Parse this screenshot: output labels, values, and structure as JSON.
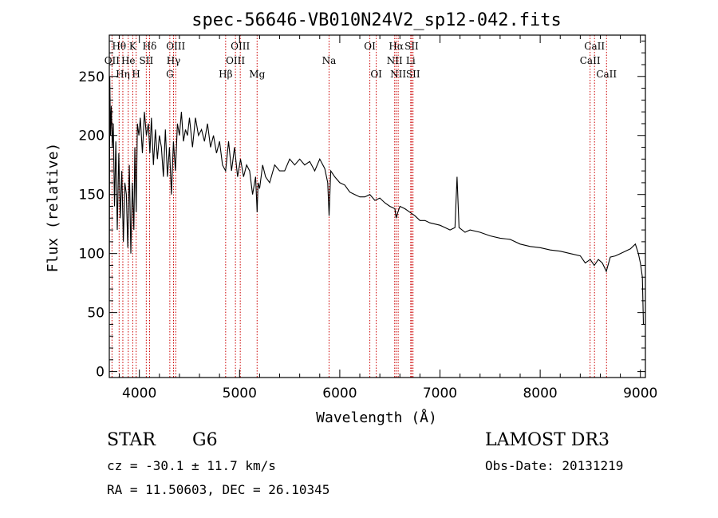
{
  "chart_data": {
    "type": "line",
    "title": "spec-56646-VB010N24V2_sp12-042.fits",
    "xlabel": "Wavelength (Å)",
    "ylabel": "Flux (relative)",
    "xlim": [
      3700,
      9050
    ],
    "ylim": [
      -5,
      285
    ],
    "xticks": [
      4000,
      5000,
      6000,
      7000,
      8000,
      9000
    ],
    "yticks": [
      0,
      50,
      100,
      150,
      200,
      250
    ],
    "series": [
      {
        "name": "flux",
        "x": [
          3700,
          3705,
          3712,
          3720,
          3730,
          3740,
          3752,
          3765,
          3780,
          3795,
          3810,
          3825,
          3840,
          3855,
          3870,
          3885,
          3900,
          3915,
          3930,
          3945,
          3955,
          3968,
          3980,
          3995,
          4010,
          4030,
          4050,
          4070,
          4090,
          4105,
          4120,
          4140,
          4160,
          4180,
          4200,
          4220,
          4240,
          4260,
          4280,
          4300,
          4320,
          4340,
          4360,
          4380,
          4400,
          4420,
          4440,
          4460,
          4480,
          4500,
          4530,
          4560,
          4590,
          4620,
          4650,
          4680,
          4710,
          4740,
          4770,
          4800,
          4830,
          4861,
          4890,
          4920,
          4950,
          4980,
          5010,
          5040,
          5070,
          5100,
          5130,
          5160,
          5175,
          5185,
          5200,
          5230,
          5260,
          5300,
          5350,
          5400,
          5450,
          5500,
          5550,
          5600,
          5650,
          5700,
          5750,
          5800,
          5850,
          5880,
          5893,
          5910,
          5950,
          6000,
          6050,
          6100,
          6150,
          6200,
          6250,
          6300,
          6350,
          6400,
          6450,
          6500,
          6550,
          6563,
          6580,
          6600,
          6650,
          6700,
          6750,
          6800,
          6850,
          6900,
          6950,
          7000,
          7050,
          7100,
          7150,
          7170,
          7190,
          7250,
          7300,
          7400,
          7500,
          7600,
          7700,
          7800,
          7900,
          8000,
          8100,
          8200,
          8300,
          8400,
          8450,
          8500,
          8540,
          8580,
          8620,
          8660,
          8700,
          8750,
          8800,
          8850,
          8900,
          8950,
          8980,
          9000,
          9010,
          9020,
          9030
        ],
        "values": [
          60,
          250,
          200,
          225,
          190,
          210,
          140,
          195,
          120,
          185,
          130,
          170,
          110,
          160,
          150,
          105,
          175,
          100,
          160,
          120,
          190,
          135,
          210,
          200,
          215,
          185,
          220,
          200,
          210,
          185,
          215,
          175,
          205,
          180,
          200,
          190,
          165,
          205,
          165,
          190,
          150,
          195,
          170,
          210,
          200,
          220,
          195,
          205,
          200,
          215,
          190,
          215,
          200,
          205,
          195,
          210,
          190,
          200,
          185,
          195,
          175,
          170,
          195,
          170,
          190,
          165,
          180,
          165,
          175,
          170,
          150,
          165,
          135,
          160,
          155,
          175,
          165,
          160,
          175,
          170,
          170,
          180,
          175,
          180,
          175,
          178,
          170,
          180,
          172,
          160,
          132,
          170,
          165,
          160,
          158,
          152,
          150,
          148,
          148,
          150,
          145,
          147,
          143,
          140,
          138,
          130,
          135,
          140,
          138,
          135,
          132,
          128,
          128,
          126,
          125,
          124,
          122,
          120,
          122,
          165,
          122,
          118,
          120,
          118,
          115,
          113,
          112,
          108,
          106,
          105,
          103,
          102,
          100,
          98,
          92,
          95,
          90,
          95,
          92,
          85,
          97,
          98,
          100,
          102,
          104,
          108,
          100,
          92,
          86,
          80,
          40
        ]
      }
    ],
    "line_labels": [
      {
        "name": "OII",
        "x": 3727,
        "row": 1
      },
      {
        "name": "Hθ",
        "x": 3798,
        "row": 0
      },
      {
        "name": "He",
        "x": 3889,
        "row": 1
      },
      {
        "name": "Hη",
        "x": 3835,
        "row": 2
      },
      {
        "name": "K",
        "x": 3934,
        "row": 0
      },
      {
        "name": "H",
        "x": 3968,
        "row": 2
      },
      {
        "name": "SII",
        "x": 4069,
        "row": 1
      },
      {
        "name": "Hδ",
        "x": 4102,
        "row": 0
      },
      {
        "name": "OIII",
        "x": 4363,
        "row": 0
      },
      {
        "name": "Hγ",
        "x": 4341,
        "row": 1
      },
      {
        "name": "G",
        "x": 4304,
        "row": 2
      },
      {
        "name": "Hβ",
        "x": 4861,
        "row": 2
      },
      {
        "name": "OIII",
        "x": 5007,
        "row": 0
      },
      {
        "name": "OIII",
        "x": 4959,
        "row": 1
      },
      {
        "name": "Mg",
        "x": 5175,
        "row": 2
      },
      {
        "name": "Na",
        "x": 5893,
        "row": 1
      },
      {
        "name": "OI",
        "x": 6300,
        "row": 0
      },
      {
        "name": "OI",
        "x": 6364,
        "row": 2
      },
      {
        "name": "Hα",
        "x": 6563,
        "row": 0
      },
      {
        "name": "NII",
        "x": 6548,
        "row": 1
      },
      {
        "name": "NII",
        "x": 6583,
        "row": 2
      },
      {
        "name": "SII",
        "x": 6717,
        "row": 0
      },
      {
        "name": "Li",
        "x": 6708,
        "row": 1
      },
      {
        "name": "SII",
        "x": 6731,
        "row": 2
      },
      {
        "name": "CaII",
        "x": 8542,
        "row": 0
      },
      {
        "name": "CaII",
        "x": 8498,
        "row": 1
      },
      {
        "name": "CaII",
        "x": 8662,
        "row": 2
      }
    ],
    "line_markers": [
      3727,
      3798,
      3835,
      3889,
      3934,
      3968,
      4069,
      4102,
      4304,
      4341,
      4363,
      4861,
      4959,
      5007,
      5175,
      5893,
      6300,
      6364,
      6548,
      6563,
      6583,
      6708,
      6717,
      6731,
      8498,
      8542,
      8662
    ],
    "colors": {
      "spectrum": "#000000",
      "marker": "#cc0000",
      "axes": "#000000"
    }
  },
  "info": {
    "class": "STAR",
    "subclass": "G6",
    "survey": "LAMOST DR3",
    "redshift": "cz = -30.1 ± 11.7 km/s",
    "obs_date": "Obs-Date: 20131219",
    "coords": "RA =  11.50603, DEC =  26.10345"
  }
}
